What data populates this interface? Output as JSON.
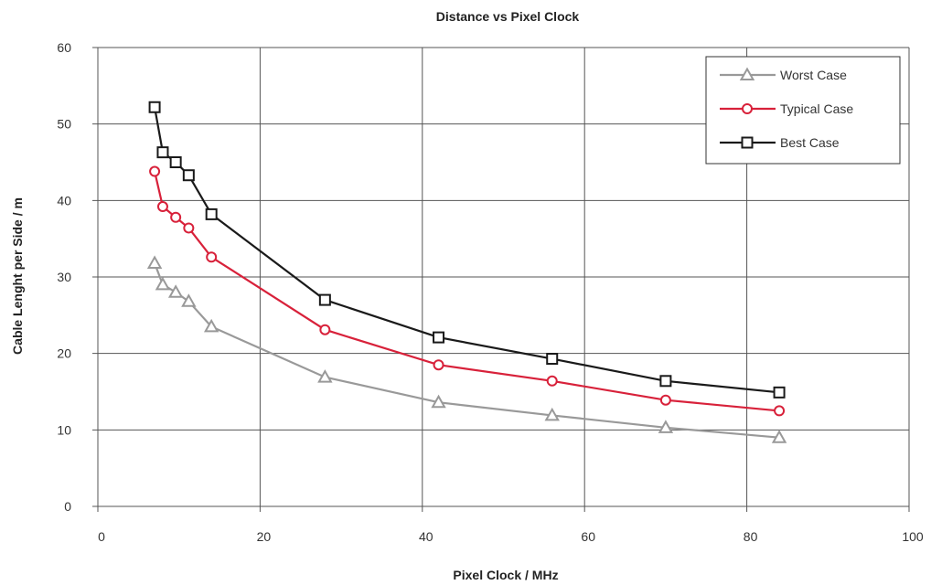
{
  "chart_data": {
    "type": "line",
    "title": "Distance vs Pixel Clock",
    "xlabel": "Pixel Clock / MHz",
    "ylabel": "Cable Lenght per Side / m",
    "xlim": [
      0,
      100
    ],
    "ylim": [
      0,
      60
    ],
    "xticks": [
      0,
      20,
      40,
      60,
      80,
      100
    ],
    "yticks": [
      0,
      10,
      20,
      30,
      40,
      50,
      60
    ],
    "grid": true,
    "legend_position": "top-right",
    "series": [
      {
        "name": "Worst Case",
        "color": "#999999",
        "marker": "triangle",
        "x": [
          7.0,
          8.0,
          9.6,
          11.2,
          14.0,
          28.0,
          42.0,
          56.0,
          70.0,
          84.0
        ],
        "y": [
          31.8,
          29.0,
          28.0,
          26.8,
          23.5,
          16.9,
          13.6,
          11.9,
          10.3,
          9.0
        ]
      },
      {
        "name": "Typical Case",
        "color": "#d8213a",
        "marker": "circle",
        "x": [
          7.0,
          8.0,
          9.6,
          11.2,
          14.0,
          28.0,
          42.0,
          56.0,
          70.0,
          84.0
        ],
        "y": [
          43.8,
          39.2,
          37.8,
          36.4,
          32.6,
          23.1,
          18.5,
          16.4,
          13.9,
          12.5
        ]
      },
      {
        "name": "Best Case",
        "color": "#1a1a1a",
        "marker": "square",
        "x": [
          7.0,
          8.0,
          9.6,
          11.2,
          14.0,
          28.0,
          42.0,
          56.0,
          70.0,
          84.0
        ],
        "y": [
          52.2,
          46.3,
          45.0,
          43.3,
          38.2,
          27.0,
          22.1,
          19.3,
          16.4,
          14.9
        ]
      }
    ]
  }
}
